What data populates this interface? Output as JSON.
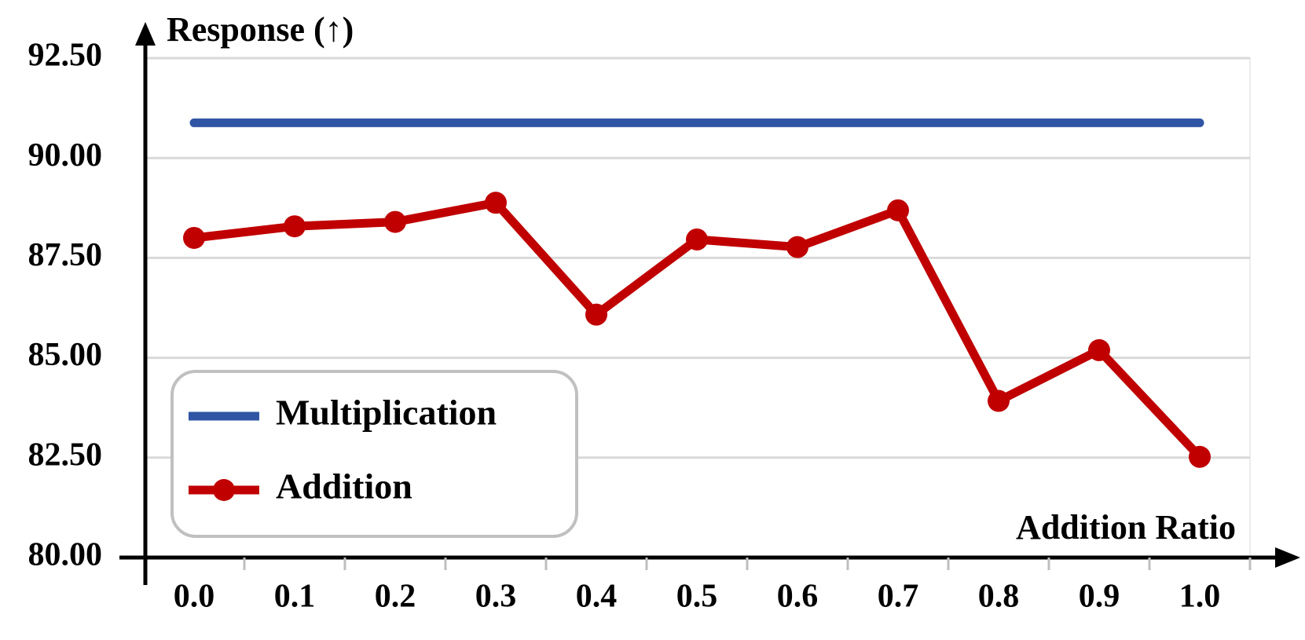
{
  "chart_data": {
    "type": "line",
    "y_label": "Response (↑)",
    "x_label": "Addition Ratio",
    "categories": [
      "0.0",
      "0.1",
      "0.2",
      "0.3",
      "0.4",
      "0.5",
      "0.6",
      "0.7",
      "0.8",
      "0.9",
      "1.0"
    ],
    "series": [
      {
        "name": "Multiplication",
        "color": "#2f55a4",
        "markers": false,
        "values": [
          90.88,
          90.88,
          90.88,
          90.88,
          90.88,
          90.88,
          90.88,
          90.88,
          90.88,
          90.88,
          90.88
        ]
      },
      {
        "name": "Addition",
        "color": "#c00000",
        "markers": true,
        "values": [
          88.0,
          88.29,
          88.4,
          88.88,
          86.08,
          87.96,
          87.77,
          88.69,
          83.92,
          85.19,
          82.52
        ]
      }
    ],
    "ylim": [
      80,
      92.5
    ],
    "yticks": [
      {
        "value": 80,
        "label": "80.00"
      },
      {
        "value": 82.5,
        "label": "82.50"
      },
      {
        "value": 85,
        "label": "85.00"
      },
      {
        "value": 87.5,
        "label": "87.50"
      },
      {
        "value": 90,
        "label": "90.00"
      },
      {
        "value": 92.5,
        "label": "92.50"
      }
    ],
    "grid": true,
    "legend": "lower left"
  }
}
